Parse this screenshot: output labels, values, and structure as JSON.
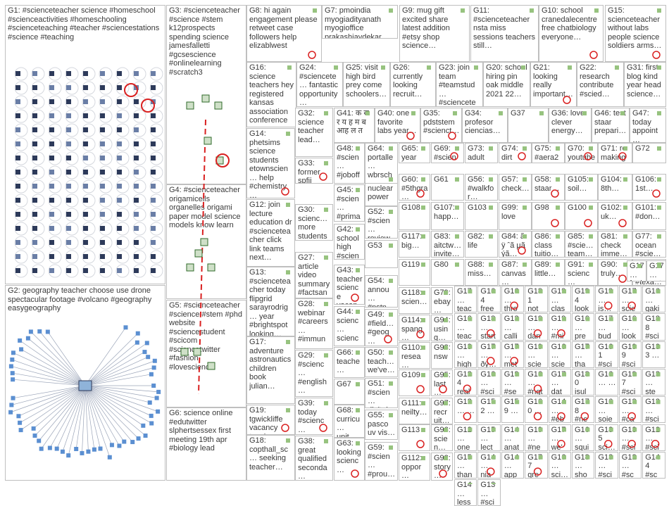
{
  "groups": [
    {
      "id": "G1",
      "text": "G1: #scienceteacher science #homeschool #scienceactivities #homeschooling #scienceteaching #teacher #sciencestations #science #teaching"
    },
    {
      "id": "G2",
      "text": "G2: geography teacher choose use drone spectacular footage #volcano #geography easygeography"
    },
    {
      "id": "G3",
      "text": "G3: #scienceteacher #science #stem k12prospects spending science jamesfalletti #gcsescience #onlinelearning #scratch3"
    },
    {
      "id": "G4",
      "text": "G4: #scienceteacher origamicells organelles origami paper model science models know learn"
    },
    {
      "id": "G5",
      "text": "G5: #scienceteacher #science #stem #phd website #sciencestudent #scicom #sciencetwitter #fashion #lovescience"
    },
    {
      "id": "G6",
      "text": "G6: science online #edutwitter slphertsessex first meeting 19th apr #biology lead"
    },
    {
      "id": "G7",
      "text": "G7: pmoindia myogiadityanath myogioffice prakashjavdekar drrpnishank…"
    },
    {
      "id": "G8",
      "text": "G8: hi again engagement please retweet case followers help elizablwest"
    },
    {
      "id": "G9",
      "text": "G9: mug gift excited share latest addition #etsy shop science…"
    },
    {
      "id": "G10",
      "text": "G10: school cranedalecentre free chatbiology everyone…"
    },
    {
      "id": "G11",
      "text": "G11: #scienceteacher nsta miss sessions teachers still…"
    },
    {
      "id": "G12",
      "text": "G12: join lecture education dr #scienceteacher click link teams next…"
    },
    {
      "id": "G13",
      "text": "G13: #scienceteacher today flipgrid sarayrodrig… year #brightspot looking…"
    },
    {
      "id": "G14",
      "text": "G14: phetsims science students etownscien… help #chemistry…"
    },
    {
      "id": "G15",
      "text": "G15: scienceteacher without labs people science soldiers arms…"
    },
    {
      "id": "G16",
      "text": "G16: science teachers hey registered kansas association conference…"
    },
    {
      "id": "G17",
      "text": "G17: adventure astronautics children book julian…"
    },
    {
      "id": "G18",
      "text": "G18: copthall_sc… seeking teacher…"
    },
    {
      "id": "G19",
      "text": "G19: tgwickliffe vacancy teacher 57…"
    },
    {
      "id": "G20",
      "text": "G20: school hiring pin oak middle 2021 22…"
    },
    {
      "id": "G21",
      "text": "G21: looking really important…"
    },
    {
      "id": "G22",
      "text": "G22: research contribute #scied…"
    },
    {
      "id": "G23",
      "text": "G23: join team #teamstud… #sciencete…"
    },
    {
      "id": "G24",
      "text": "G24: #sciencete… fantastic opportunity…"
    },
    {
      "id": "G25",
      "text": "G25: visit high bird prey come schoolers…"
    },
    {
      "id": "G26",
      "text": "G26: currently looking recruit…"
    },
    {
      "id": "G27",
      "text": "G27: article video summary #factsan…"
    },
    {
      "id": "G28",
      "text": "G28: webinar #careers… #immun… graduat…"
    },
    {
      "id": "G29",
      "text": "G29: #scienc… #english… #english… #english…"
    },
    {
      "id": "G30",
      "text": "G30: scienc… more students currently…"
    },
    {
      "id": "G31",
      "text": "G31: first blog kind year head science…"
    },
    {
      "id": "G32",
      "text": "G32: science teacher lead…"
    },
    {
      "id": "G33",
      "text": "G33: former spfii #scienc… turned…"
    },
    {
      "id": "G34",
      "text": "G34: profesor ciencias…"
    },
    {
      "id": "G35",
      "text": "G35: pdststem #scienct…"
    },
    {
      "id": "G36",
      "text": "G36: love clever energy…"
    },
    {
      "id": "G37",
      "text": "G37"
    },
    {
      "id": "G38",
      "text": "G38: great qualified seconda…"
    },
    {
      "id": "G39",
      "text": "G39: today #scienc… billnye…"
    },
    {
      "id": "G40",
      "text": "G40: one favorite labs year…"
    },
    {
      "id": "G41",
      "text": "G41: क स र य ह म ब आह ल त"
    },
    {
      "id": "G42",
      "text": "G42: school high #scien…"
    },
    {
      "id": "G43",
      "text": "G43: teacher science vacan…"
    },
    {
      "id": "G44",
      "text": "G44: scienc… scienc…"
    },
    {
      "id": "G45",
      "text": "G45: #scien… #prima… #remot…"
    },
    {
      "id": "G46",
      "text": "G46: test staar prepari…"
    },
    {
      "id": "G47",
      "text": "G47: today appoint…"
    },
    {
      "id": "G48",
      "text": "G48: #scien… #joboff… seekin…"
    },
    {
      "id": "G49",
      "text": "G49: #field… #geog…"
    },
    {
      "id": "G50",
      "text": "G50: teach… we've…"
    },
    {
      "id": "G51",
      "text": "G51: #scien… digital…"
    },
    {
      "id": "G52",
      "text": "G52: #scien… review…"
    },
    {
      "id": "G53",
      "text": "G53"
    },
    {
      "id": "G54",
      "text": "G54: annou… #nstn…"
    },
    {
      "id": "G55",
      "text": "G55: pasco uv vis…"
    },
    {
      "id": "G56",
      "text": "G56: #walkfor…"
    },
    {
      "id": "G57",
      "text": "G57: check…"
    },
    {
      "id": "G58",
      "text": "G58: staar…"
    },
    {
      "id": "G59",
      "text": "G59: #scien… #prou…"
    },
    {
      "id": "G60",
      "text": "G60: #5thgra…"
    },
    {
      "id": "G61",
      "text": "G61"
    },
    {
      "id": "G62",
      "text": "G62: nuclear power…"
    },
    {
      "id": "G63",
      "text": "G63: looking scienc…"
    },
    {
      "id": "G64",
      "text": "G64: portalle… wbrsch…"
    },
    {
      "id": "G65",
      "text": "G65: year #scien…"
    },
    {
      "id": "G66",
      "text": "G66: teache… ncse…"
    },
    {
      "id": "G67",
      "text": "G67"
    },
    {
      "id": "G68",
      "text": "G68: curricu… unit…"
    },
    {
      "id": "G69",
      "text": "G69: #scien… #physi…"
    },
    {
      "id": "G70",
      "text": "G70: youtube review…"
    },
    {
      "id": "G71",
      "text": "G71: re making historic…"
    },
    {
      "id": "G72",
      "text": "G72"
    },
    {
      "id": "G73",
      "text": "G73: adult guppie…"
    },
    {
      "id": "G74",
      "text": "G74: dirt potting mix"
    },
    {
      "id": "G75",
      "text": "G75: #aera21 check…"
    },
    {
      "id": "G76",
      "text": "G76: #scie… #texa…"
    },
    {
      "id": "G77",
      "text": "G77: ocean #scie…"
    },
    {
      "id": "G78",
      "text": "G78: water cycle…"
    },
    {
      "id": "G79",
      "text": "G79: ebay…"
    },
    {
      "id": "G80",
      "text": "G80"
    },
    {
      "id": "G81",
      "text": "G81: check imme…"
    },
    {
      "id": "G82",
      "text": "G82: life"
    },
    {
      "id": "G83",
      "text": "G83: aitctw… invite…"
    },
    {
      "id": "G84",
      "text": "G84: ã ÿ ˆã µã ýã…"
    },
    {
      "id": "G85",
      "text": "G85: #scie… team…"
    },
    {
      "id": "G86",
      "text": "G86: class tuitio…"
    },
    {
      "id": "G87",
      "text": "G87: canvas…"
    },
    {
      "id": "G88",
      "text": "G88: miss…"
    },
    {
      "id": "G89",
      "text": "G89: little…"
    },
    {
      "id": "G90",
      "text": "G90: truly…"
    },
    {
      "id": "G91",
      "text": "G91: scienc…"
    },
    {
      "id": "G92",
      "text": "G92: story…"
    },
    {
      "id": "G93",
      "text": "G93: nsw"
    },
    {
      "id": "G94",
      "text": "G94: using…"
    },
    {
      "id": "G95",
      "text": "G95: last…"
    },
    {
      "id": "G96",
      "text": "G96: scien…"
    },
    {
      "id": "G97",
      "text": "G97: recruit…"
    },
    {
      "id": "G98",
      "text": "G98"
    },
    {
      "id": "G99",
      "text": "G99: love"
    },
    {
      "id": "G100",
      "text": "G100"
    },
    {
      "id": "G101",
      "text": "G101: #don…"
    },
    {
      "id": "G102",
      "text": "G102: uk…"
    },
    {
      "id": "G103",
      "text": "G103"
    },
    {
      "id": "G104",
      "text": "G104: 8th…"
    },
    {
      "id": "G105",
      "text": "G105: soil…"
    },
    {
      "id": "G106",
      "text": "G106: 1st…"
    },
    {
      "id": "G107",
      "text": "G107: happ…"
    },
    {
      "id": "G108",
      "text": "G108"
    },
    {
      "id": "G109",
      "text": "G109"
    },
    {
      "id": "G110",
      "text": "G110: resea…"
    },
    {
      "id": "G111",
      "text": "G111: neilty…"
    },
    {
      "id": "G112",
      "text": "G112: oppor…"
    },
    {
      "id": "G113",
      "text": "G113"
    },
    {
      "id": "G114",
      "text": "G114: spang…"
    },
    {
      "id": "G115",
      "text": "G115: look…"
    },
    {
      "id": "G116",
      "text": "G116"
    },
    {
      "id": "G117",
      "text": "G117: big…"
    },
    {
      "id": "G118",
      "text": "G118: scien…"
    },
    {
      "id": "G119",
      "text": "G119"
    },
    {
      "id": "G17b",
      "text": "G17… feel…"
    },
    {
      "id": "G17c",
      "text": "G17… wat…"
    },
    {
      "id": "c1",
      "text": "G17… teac…"
    },
    {
      "id": "c2",
      "text": "G164 free…"
    },
    {
      "id": "c3",
      "text": "G16… thro…"
    },
    {
      "id": "c4",
      "text": "G181 not…"
    },
    {
      "id": "c5",
      "text": "G19… clas…"
    },
    {
      "id": "c6",
      "text": "G194 look…"
    },
    {
      "id": "c7",
      "text": "G19… is…"
    },
    {
      "id": "c8",
      "text": "G17… scie…"
    },
    {
      "id": "c9",
      "text": "G16… gaki…"
    },
    {
      "id": "c10",
      "text": "G16… teac…"
    },
    {
      "id": "c11",
      "text": "G18… start…"
    },
    {
      "id": "c12",
      "text": "G13… calli…"
    },
    {
      "id": "c13",
      "text": "G19… dan…"
    },
    {
      "id": "c14",
      "text": "G19… #mi…"
    },
    {
      "id": "c15",
      "text": "G16… pre…"
    },
    {
      "id": "c16",
      "text": "G17… bud…"
    },
    {
      "id": "c17",
      "text": "G16… look…"
    },
    {
      "id": "c18",
      "text": "G188 #sci…"
    },
    {
      "id": "c19",
      "text": "G13… high…"
    },
    {
      "id": "c20",
      "text": "G17… ðÿ…"
    },
    {
      "id": "c21",
      "text": "G17… met…"
    },
    {
      "id": "c22",
      "text": "G19… scie…"
    },
    {
      "id": "c23",
      "text": "G16… scie…"
    },
    {
      "id": "c24",
      "text": "G17… tha…"
    },
    {
      "id": "c25",
      "text": "G161 #sci…"
    },
    {
      "id": "c26",
      "text": "G199 #sci…"
    },
    {
      "id": "c27",
      "text": "G133 …"
    },
    {
      "id": "c28",
      "text": "G124 real…"
    },
    {
      "id": "c29",
      "text": "G16… #sci…"
    },
    {
      "id": "c30",
      "text": "G19… #se…"
    },
    {
      "id": "c31",
      "text": "G16… #nqt…"
    },
    {
      "id": "c32",
      "text": "G17… dat…"
    },
    {
      "id": "c33",
      "text": "G180 isul…"
    },
    {
      "id": "c34",
      "text": "G16… …"
    },
    {
      "id": "c35",
      "text": "G197 #sci…"
    },
    {
      "id": "c36",
      "text": "G13… ste…"
    },
    {
      "id": "c37",
      "text": "G12… …"
    },
    {
      "id": "c38",
      "text": "G152 …"
    },
    {
      "id": "c39",
      "text": "G159 …"
    },
    {
      "id": "c40",
      "text": "G160 …"
    },
    {
      "id": "c41",
      "text": "G14… #eb…"
    },
    {
      "id": "c42",
      "text": "G178 #ne…"
    },
    {
      "id": "c43",
      "text": "G16… soie…"
    },
    {
      "id": "c44",
      "text": "G13… #ca…"
    },
    {
      "id": "c45",
      "text": "G13… #sci…"
    },
    {
      "id": "c46",
      "text": "G12… one…"
    },
    {
      "id": "c47",
      "text": "G15… lect…"
    },
    {
      "id": "c48",
      "text": "G14… anat…"
    },
    {
      "id": "c49",
      "text": "G19… #ne…"
    },
    {
      "id": "c50",
      "text": "G17… we'…"
    },
    {
      "id": "c51",
      "text": "G16… squi…"
    },
    {
      "id": "c52",
      "text": "G185 sci…"
    },
    {
      "id": "c53",
      "text": "G13… #sci…"
    },
    {
      "id": "c54",
      "text": "G12… #sci…"
    },
    {
      "id": "c55",
      "text": "G15… than…"
    },
    {
      "id": "c56",
      "text": "G14… nia…"
    },
    {
      "id": "c57",
      "text": "G14… app…"
    },
    {
      "id": "c58",
      "text": "G177 gre…"
    },
    {
      "id": "c59",
      "text": "G16… sci…"
    },
    {
      "id": "c60",
      "text": "G18… sho…"
    },
    {
      "id": "c61",
      "text": "G13… #sci…"
    },
    {
      "id": "c62",
      "text": "G12… #sc…"
    },
    {
      "id": "c63",
      "text": "G144 #sc…"
    },
    {
      "id": "c64",
      "text": "G14… less…"
    },
    {
      "id": "c65",
      "text": "G13… #sci…"
    }
  ],
  "colors": {
    "border": "#bfbfbf",
    "edge": "#9aa4b8",
    "edge_highlight": "#d92020",
    "node_fill": "#e8edf5",
    "node_dark": "#2d3a5a",
    "text": "#3a3a3a"
  }
}
